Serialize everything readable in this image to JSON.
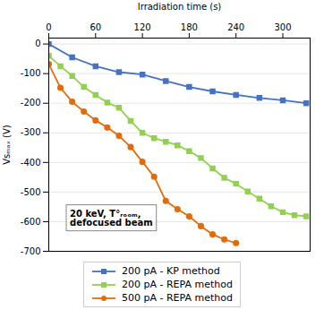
{
  "chart_data": {
    "type": "line",
    "xlabel": "Irradiation time (s)",
    "ylabel": "Vsₘₐₓ (V)",
    "xlim": [
      0,
      335
    ],
    "ylim": [
      -700,
      20
    ],
    "xticks": [
      0,
      60,
      120,
      180,
      240,
      300
    ],
    "yticks": [
      0,
      -100,
      -200,
      -300,
      -400,
      -500,
      -600,
      -700
    ],
    "grid": true,
    "legend": "bottom",
    "annotation": "20 keV, T°ᵣₒₒₘ,\ndefocused beam",
    "series": [
      {
        "name": "200 pA - KP method",
        "color": "#4472C4",
        "marker": "square",
        "x": [
          0,
          30,
          60,
          90,
          120,
          150,
          180,
          210,
          240,
          270,
          300,
          330
        ],
        "values": [
          0,
          -45,
          -75,
          -95,
          -103,
          -125,
          -145,
          -160,
          -172,
          -182,
          -190,
          -200
        ]
      },
      {
        "name": "200 pA - REPA method",
        "color": "#92D050",
        "marker": "square",
        "x": [
          0,
          15,
          30,
          45,
          60,
          75,
          90,
          105,
          120,
          135,
          150,
          165,
          180,
          195,
          210,
          225,
          240,
          255,
          270,
          285,
          300,
          315,
          330
        ],
        "values": [
          -40,
          -75,
          -108,
          -145,
          -172,
          -198,
          -215,
          -260,
          -300,
          -318,
          -330,
          -342,
          -362,
          -385,
          -420,
          -452,
          -472,
          -498,
          -522,
          -548,
          -568,
          -578,
          -582
        ]
      },
      {
        "name": "500 pA - REPA method",
        "color": "#E26B0A",
        "marker": "circle",
        "x": [
          0,
          15,
          30,
          45,
          60,
          75,
          90,
          105,
          120,
          135,
          150,
          165,
          180,
          195,
          210,
          225,
          240
        ],
        "values": [
          -68,
          -148,
          -195,
          -228,
          -258,
          -282,
          -310,
          -348,
          -398,
          -448,
          -530,
          -558,
          -582,
          -615,
          -643,
          -660,
          -672
        ]
      }
    ]
  }
}
